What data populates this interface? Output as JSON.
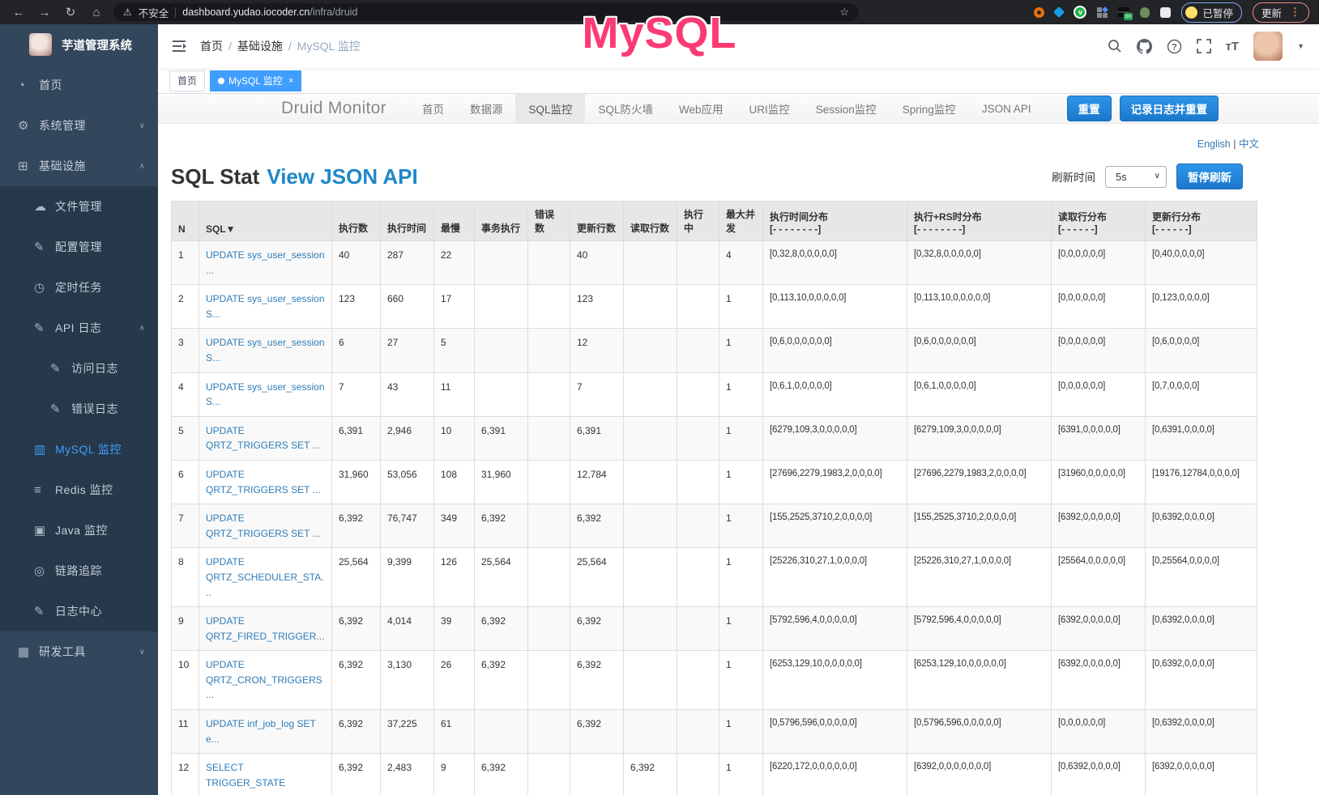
{
  "browser": {
    "security_label": "不安全",
    "url_host": "dashboard.yudao.iocoder.cn",
    "url_path": "/infra/druid",
    "ext_on_badge": "on",
    "paused_badge": "已暂停",
    "update_button": "更新"
  },
  "annotation": {
    "text": "MySQL",
    "color": "#fb3b74"
  },
  "icon_glyphs": {
    "back": "←",
    "forward": "→",
    "reload": "↻",
    "home": "⌂",
    "warning": "⚠",
    "star": "☆",
    "dashboard": "◔",
    "gear": "⚙",
    "grid": "⊞",
    "cloud-upload": "☁",
    "edit": "✎",
    "timer": "◷",
    "document": "✎",
    "chart": "▥",
    "layers": "≡",
    "monitor": "▣",
    "eye": "◎",
    "briefcase": "▦",
    "chevron-down": "∨",
    "chevron-up": "∧"
  },
  "sidebar": {
    "app_title": "芋道管理系统",
    "items": [
      {
        "name": "home",
        "label": "首页",
        "icon": "dashboard",
        "level": 0
      },
      {
        "name": "system-management",
        "label": "系统管理",
        "icon": "gear",
        "level": 0,
        "chevron": "down"
      },
      {
        "name": "infrastructure",
        "label": "基础设施",
        "icon": "grid",
        "level": 0,
        "chevron": "up"
      },
      {
        "name": "file-management",
        "label": "文件管理",
        "icon": "cloud-upload",
        "level": 1,
        "dark": true
      },
      {
        "name": "config-management",
        "label": "配置管理",
        "icon": "edit",
        "level": 1,
        "dark": true
      },
      {
        "name": "scheduled-tasks",
        "label": "定时任务",
        "icon": "timer",
        "level": 1,
        "dark": true
      },
      {
        "name": "api-logs",
        "label": "API 日志",
        "icon": "document",
        "level": 1,
        "dark": true,
        "chevron": "up"
      },
      {
        "name": "access-logs",
        "label": "访问日志",
        "icon": "document",
        "level": 2,
        "dark": true
      },
      {
        "name": "error-logs",
        "label": "错误日志",
        "icon": "document",
        "level": 2,
        "dark": true
      },
      {
        "name": "mysql-monitor",
        "label": "MySQL 监控",
        "icon": "chart",
        "level": 1,
        "dark": true,
        "active": true
      },
      {
        "name": "redis-monitor",
        "label": "Redis 监控",
        "icon": "layers",
        "level": 1,
        "dark": true
      },
      {
        "name": "java-monitor",
        "label": "Java 监控",
        "icon": "monitor",
        "level": 1,
        "dark": true
      },
      {
        "name": "trace",
        "label": "链路追踪",
        "icon": "eye",
        "level": 1,
        "dark": true
      },
      {
        "name": "log-center",
        "label": "日志中心",
        "icon": "document",
        "level": 1,
        "dark": true
      },
      {
        "name": "dev-tools",
        "label": "研发工具",
        "icon": "briefcase",
        "level": 0,
        "chevron": "down"
      }
    ]
  },
  "header": {
    "breadcrumb": [
      "首页",
      "基础设施",
      "MySQL 监控"
    ]
  },
  "tags": [
    {
      "name": "home",
      "label": "首页"
    },
    {
      "name": "mysql-monitor",
      "label": "MySQL 监控",
      "active": true
    }
  ],
  "druid": {
    "brand": "Druid Monitor",
    "nav": [
      {
        "name": "home",
        "label": "首页"
      },
      {
        "name": "datasource",
        "label": "数据源"
      },
      {
        "name": "sql-stat",
        "label": "SQL监控",
        "active": true
      },
      {
        "name": "sql-firewall",
        "label": "SQL防火墙"
      },
      {
        "name": "web-app",
        "label": "Web应用"
      },
      {
        "name": "uri-stat",
        "label": "URI监控"
      },
      {
        "name": "session-stat",
        "label": "Session监控"
      },
      {
        "name": "spring-stat",
        "label": "Spring监控"
      },
      {
        "name": "json-api",
        "label": "JSON API"
      }
    ],
    "reset_button": "重置",
    "log_reset_button": "记录日志并重置",
    "lang_en": "English",
    "lang_sep": "|",
    "lang_zh": "中文",
    "title": "SQL Stat",
    "title_link": "View JSON API",
    "refresh_label": "刷新时间",
    "refresh_value": "5s",
    "pause_button": "暂停刷新"
  },
  "table": {
    "headers": [
      {
        "label": "N"
      },
      {
        "label": "SQL▼"
      },
      {
        "label": "执行数"
      },
      {
        "label": "执行时间"
      },
      {
        "label": "最慢"
      },
      {
        "label": "事务执行"
      },
      {
        "label": "错误数"
      },
      {
        "label": "更新行数"
      },
      {
        "label": "读取行数"
      },
      {
        "label": "执行中"
      },
      {
        "label": "最大并发"
      },
      {
        "label": "执行时间分布",
        "sub": "[- - - - - - - -]"
      },
      {
        "label": "执行+RS时分布",
        "sub": "[- - - - - - - -]"
      },
      {
        "label": "读取行分布",
        "sub": "[- - - - - -]"
      },
      {
        "label": "更新行分布",
        "sub": "[- - - - - -]"
      }
    ],
    "rows": [
      [
        "1",
        "UPDATE sys_user_session ...",
        "40",
        "287",
        "22",
        "",
        "",
        "40",
        "",
        "",
        "4",
        "[0,32,8,0,0,0,0,0]",
        "[0,32,8,0,0,0,0,0]",
        "[0,0,0,0,0,0]",
        "[0,40,0,0,0,0]"
      ],
      [
        "2",
        "UPDATE sys_user_session S...",
        "123",
        "660",
        "17",
        "",
        "",
        "123",
        "",
        "",
        "1",
        "[0,113,10,0,0,0,0,0]",
        "[0,113,10,0,0,0,0,0]",
        "[0,0,0,0,0,0]",
        "[0,123,0,0,0,0]"
      ],
      [
        "3",
        "UPDATE sys_user_session S...",
        "6",
        "27",
        "5",
        "",
        "",
        "12",
        "",
        "",
        "1",
        "[0,6,0,0,0,0,0,0]",
        "[0,6,0,0,0,0,0,0]",
        "[0,0,0,0,0,0]",
        "[0,6,0,0,0,0]"
      ],
      [
        "4",
        "UPDATE sys_user_session S...",
        "7",
        "43",
        "11",
        "",
        "",
        "7",
        "",
        "",
        "1",
        "[0,6,1,0,0,0,0,0]",
        "[0,6,1,0,0,0,0,0]",
        "[0,0,0,0,0,0]",
        "[0,7,0,0,0,0]"
      ],
      [
        "5",
        "UPDATE QRTZ_TRIGGERS SET ...",
        "6,391",
        "2,946",
        "10",
        "6,391",
        "",
        "6,391",
        "",
        "",
        "1",
        "[6279,109,3,0,0,0,0,0]",
        "[6279,109,3,0,0,0,0,0]",
        "[6391,0,0,0,0,0]",
        "[0,6391,0,0,0,0]"
      ],
      [
        "6",
        "UPDATE QRTZ_TRIGGERS SET ...",
        "31,960",
        "53,056",
        "108",
        "31,960",
        "",
        "12,784",
        "",
        "",
        "1",
        "[27696,2279,1983,2,0,0,0,0]",
        "[27696,2279,1983,2,0,0,0,0]",
        "[31960,0,0,0,0,0]",
        "[19176,12784,0,0,0,0]"
      ],
      [
        "7",
        "UPDATE QRTZ_TRIGGERS SET ...",
        "6,392",
        "76,747",
        "349",
        "6,392",
        "",
        "6,392",
        "",
        "",
        "1",
        "[155,2525,3710,2,0,0,0,0]",
        "[155,2525,3710,2,0,0,0,0]",
        "[6392,0,0,0,0,0]",
        "[0,6392,0,0,0,0]"
      ],
      [
        "8",
        "UPDATE QRTZ_SCHEDULER_STA...",
        "25,564",
        "9,399",
        "126",
        "25,564",
        "",
        "25,564",
        "",
        "",
        "1",
        "[25226,310,27,1,0,0,0,0]",
        "[25226,310,27,1,0,0,0,0]",
        "[25564,0,0,0,0,0]",
        "[0,25564,0,0,0,0]"
      ],
      [
        "9",
        "UPDATE QRTZ_FIRED_TRIGGER...",
        "6,392",
        "4,014",
        "39",
        "6,392",
        "",
        "6,392",
        "",
        "",
        "1",
        "[5792,596,4,0,0,0,0,0]",
        "[5792,596,4,0,0,0,0,0]",
        "[6392,0,0,0,0,0]",
        "[0,6392,0,0,0,0]"
      ],
      [
        "10",
        "UPDATE QRTZ_CRON_TRIGGERS...",
        "6,392",
        "3,130",
        "26",
        "6,392",
        "",
        "6,392",
        "",
        "",
        "1",
        "[6253,129,10,0,0,0,0,0]",
        "[6253,129,10,0,0,0,0,0]",
        "[6392,0,0,0,0,0]",
        "[0,6392,0,0,0,0]"
      ],
      [
        "11",
        "UPDATE inf_job_log SET e...",
        "6,392",
        "37,225",
        "61",
        "",
        "",
        "6,392",
        "",
        "",
        "1",
        "[0,5796,596,0,0,0,0,0]",
        "[0,5796,596,0,0,0,0,0]",
        "[0,0,0,0,0,0]",
        "[0,6392,0,0,0,0]"
      ],
      [
        "12",
        "SELECT TRIGGER_STATE",
        "6,392",
        "2,483",
        "9",
        "6,392",
        "",
        "",
        "6,392",
        "",
        "1",
        "[6220,172,0,0,0,0,0,0]",
        "[6392,0,0,0,0,0,0,0]",
        "[0,6392,0,0,0,0]",
        "[6392,0,0,0,0,0]"
      ]
    ]
  }
}
